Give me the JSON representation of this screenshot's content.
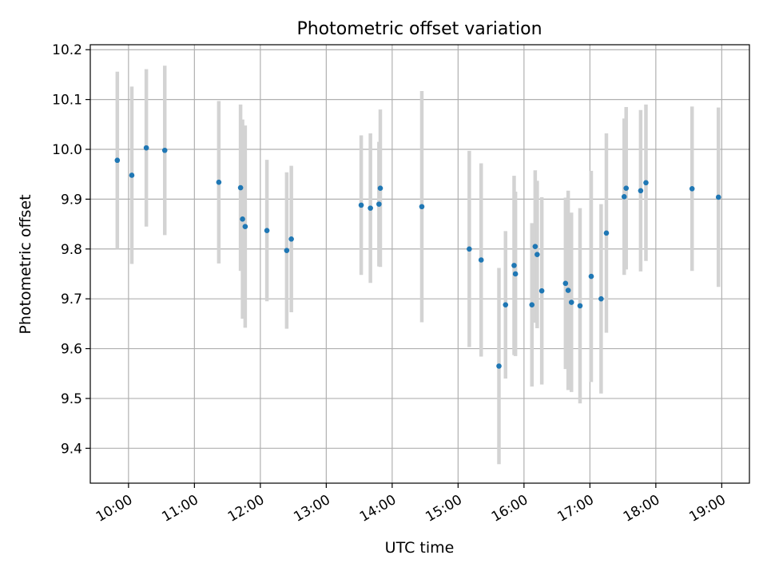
{
  "chart_data": {
    "type": "scatter",
    "title": "Photometric offset variation",
    "xlabel": "UTC time",
    "ylabel": "Photometric offset",
    "x_unit": "UTC hour of day",
    "xlim": [
      9.42,
      19.42
    ],
    "ylim": [
      9.33,
      10.21
    ],
    "grid": true,
    "x_ticks": [
      10,
      11,
      12,
      13,
      14,
      15,
      16,
      17,
      18,
      19
    ],
    "x_tick_labels": [
      "10:00",
      "11:00",
      "12:00",
      "13:00",
      "14:00",
      "15:00",
      "16:00",
      "17:00",
      "18:00",
      "19:00"
    ],
    "y_ticks": [
      9.4,
      9.5,
      9.6,
      9.7,
      9.8,
      9.9,
      10.0,
      10.1,
      10.2
    ],
    "y_tick_labels": [
      "9.4",
      "9.5",
      "9.6",
      "9.7",
      "9.8",
      "9.9",
      "10.0",
      "10.1",
      "10.2"
    ],
    "colors": {
      "points": "#1f77b4",
      "errorbars": "#d3d3d3",
      "grid": "#b0b0b0",
      "axes": "#000000"
    },
    "points": [
      {
        "x": 9.83,
        "y": 9.978,
        "err": 0.178
      },
      {
        "x": 10.05,
        "y": 9.948,
        "err": 0.178
      },
      {
        "x": 10.27,
        "y": 10.003,
        "err": 0.158
      },
      {
        "x": 10.55,
        "y": 9.998,
        "err": 0.17
      },
      {
        "x": 11.37,
        "y": 9.934,
        "err": 0.163
      },
      {
        "x": 11.7,
        "y": 9.923,
        "err": 0.167
      },
      {
        "x": 11.73,
        "y": 9.86,
        "err": 0.2
      },
      {
        "x": 11.77,
        "y": 9.845,
        "err": 0.203
      },
      {
        "x": 12.1,
        "y": 9.837,
        "err": 0.142
      },
      {
        "x": 12.4,
        "y": 9.797,
        "err": 0.157
      },
      {
        "x": 12.47,
        "y": 9.82,
        "err": 0.147
      },
      {
        "x": 13.53,
        "y": 9.888,
        "err": 0.14
      },
      {
        "x": 13.67,
        "y": 9.882,
        "err": 0.15
      },
      {
        "x": 13.8,
        "y": 9.89,
        "err": 0.125
      },
      {
        "x": 13.82,
        "y": 9.922,
        "err": 0.158
      },
      {
        "x": 14.45,
        "y": 9.885,
        "err": 0.232
      },
      {
        "x": 15.17,
        "y": 9.8,
        "err": 0.197
      },
      {
        "x": 15.35,
        "y": 9.778,
        "err": 0.194
      },
      {
        "x": 15.62,
        "y": 9.565,
        "err": 0.197
      },
      {
        "x": 15.72,
        "y": 9.688,
        "err": 0.148
      },
      {
        "x": 15.85,
        "y": 9.767,
        "err": 0.18
      },
      {
        "x": 15.87,
        "y": 9.75,
        "err": 0.165
      },
      {
        "x": 16.12,
        "y": 9.688,
        "err": 0.164
      },
      {
        "x": 16.17,
        "y": 9.805,
        "err": 0.153
      },
      {
        "x": 16.2,
        "y": 9.789,
        "err": 0.148
      },
      {
        "x": 16.27,
        "y": 9.716,
        "err": 0.188
      },
      {
        "x": 16.63,
        "y": 9.731,
        "err": 0.172
      },
      {
        "x": 16.67,
        "y": 9.717,
        "err": 0.2
      },
      {
        "x": 16.72,
        "y": 9.693,
        "err": 0.18
      },
      {
        "x": 16.85,
        "y": 9.686,
        "err": 0.196
      },
      {
        "x": 17.02,
        "y": 9.745,
        "err": 0.212
      },
      {
        "x": 17.17,
        "y": 9.7,
        "err": 0.19
      },
      {
        "x": 17.25,
        "y": 9.832,
        "err": 0.2
      },
      {
        "x": 17.52,
        "y": 9.905,
        "err": 0.157
      },
      {
        "x": 17.55,
        "y": 9.922,
        "err": 0.163
      },
      {
        "x": 17.77,
        "y": 9.917,
        "err": 0.162
      },
      {
        "x": 17.85,
        "y": 9.933,
        "err": 0.157
      },
      {
        "x": 18.55,
        "y": 9.921,
        "err": 0.165
      },
      {
        "x": 18.95,
        "y": 9.904,
        "err": 0.18
      }
    ]
  }
}
